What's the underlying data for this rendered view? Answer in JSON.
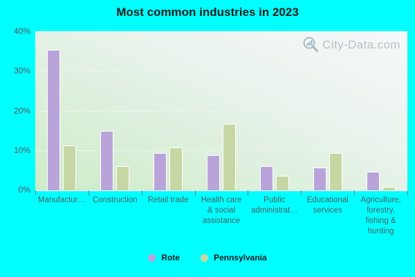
{
  "title": "Most common industries in 2023",
  "watermark": {
    "text": "City-Data.com"
  },
  "colors": {
    "background": "#00ffff",
    "rote_series": "#b9a4da",
    "pennsylvania_series": "#c6d7a3",
    "plot_gradient_top": "#f6f8fa",
    "plot_gradient_bottom": "#cdebc7"
  },
  "chart_data": {
    "type": "bar",
    "title": "Most common industries in 2023",
    "categories": [
      "Manufacturing",
      "Construction",
      "Retail trade",
      "Health care & social assistance",
      "Public administration",
      "Educational services",
      "Agriculture, forestry, fishing & hunting"
    ],
    "category_display_labels": [
      "Manufactur…",
      "Construction",
      "Retail trade",
      "Health care\n& social\nassistance",
      "Public\nadministrat…",
      "Educational\nservices",
      "Agriculture,\nforestry,\nfishing &\nhunting"
    ],
    "series": [
      {
        "name": "Rote",
        "color": "#b9a4da",
        "values": [
          35.5,
          15.0,
          9.4,
          8.9,
          6.1,
          5.7,
          4.8
        ]
      },
      {
        "name": "Pennsylvania",
        "color": "#c6d7a3",
        "values": [
          11.3,
          6.2,
          10.8,
          16.8,
          3.7,
          9.5,
          0.8
        ]
      }
    ],
    "xlabel": "",
    "ylabel": "",
    "ylim": [
      0,
      40
    ],
    "yticks": [
      {
        "value": 0,
        "label": "0%"
      },
      {
        "value": 10,
        "label": "10%"
      },
      {
        "value": 20,
        "label": "20%"
      },
      {
        "value": 30,
        "label": "30%"
      },
      {
        "value": 40,
        "label": "40%"
      }
    ],
    "grid": "horizontal",
    "legend_position": "bottom"
  }
}
